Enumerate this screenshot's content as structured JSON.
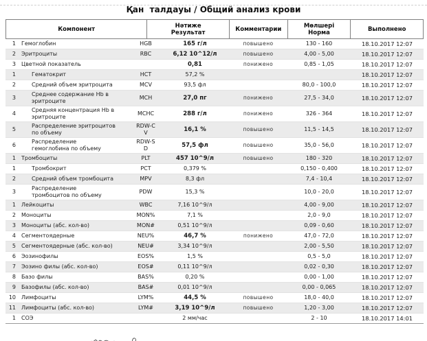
{
  "report": {
    "title": "Қан  талдауы / Общий анализ крови",
    "columns": {
      "component": "Компонент",
      "result_line1": "Нәтиже",
      "result_line2": "Результат",
      "comments": "Комментарии",
      "norm_line1": "Мөлшері",
      "norm_line2": "Норма",
      "done": "Выполнено"
    },
    "comment_values": {
      "high": "повышено",
      "low": "понижено"
    },
    "colors": {
      "stripe": "#ebebeb",
      "header_border": "#7f7f7f"
    },
    "rows": [
      {
        "num": "1",
        "name": "Гемоглобин",
        "abbr": "HGB",
        "result": "165 г/л",
        "comment": "повышено",
        "norm": "130 - 160",
        "done": "18.10.2017 12:07",
        "indent": false
      },
      {
        "num": "2",
        "name": "Эритроциты",
        "abbr": "RBC",
        "result": "6,12 10^12/л",
        "comment": "повышено",
        "norm": "4,00 - 5,00",
        "done": "18.10.2017 12:07",
        "indent": false
      },
      {
        "num": "3",
        "name": "Цветной показатель",
        "abbr": "",
        "result": "0,81",
        "comment": "понижено",
        "norm": "0,85 - 1,05",
        "done": "18.10.2017 12:07",
        "indent": false
      },
      {
        "num": "1",
        "name": "Гематокрит",
        "abbr": "HCT",
        "result": "57,2 %",
        "comment": "",
        "norm": "",
        "done": "18.10.2017 12:07",
        "indent": true
      },
      {
        "num": "2",
        "name": "Средний объем эритроцита",
        "abbr": "MCV",
        "result": "93,5 фл",
        "comment": "",
        "norm": "80,0 - 100,0",
        "done": "18.10.2017 12:07",
        "indent": true
      },
      {
        "num": "3",
        "name": "Среднее содержание Hb в эритроците",
        "abbr": "MCH",
        "result": "27,0 пг",
        "comment": "понижено",
        "norm": "27,5 - 34,0",
        "done": "18.10.2017 12:07",
        "indent": true
      },
      {
        "num": "4",
        "name": "Средняя концентрация Hb в эритроците",
        "abbr": "MCHC",
        "result": "288 г/л",
        "comment": "понижено",
        "norm": "326 - 364",
        "done": "18.10.2017 12:07",
        "indent": true
      },
      {
        "num": "5",
        "name": "Распределение эритроцитов по объему",
        "abbr": "RDW-C V",
        "result": "16,1 %",
        "comment": "повышено",
        "norm": "11,5 - 14,5",
        "done": "18.10.2017 12:07",
        "indent": true
      },
      {
        "num": "6",
        "name": "Распределение гемоглобина  по объему",
        "abbr": "RDW-S D",
        "result": "57,5 фл",
        "comment": "повышено",
        "norm": "35,0 - 56,0",
        "done": "18.10.2017 12:07",
        "indent": true
      },
      {
        "num": "1",
        "name": "Тромбоциты",
        "abbr": "PLT",
        "result": "457 10^9/л",
        "comment": "повышено",
        "norm": "180 - 320",
        "done": "18.10.2017 12:07",
        "indent": false
      },
      {
        "num": "1",
        "name": "Тромбокрит",
        "abbr": "PCT",
        "result": "0,379 %",
        "comment": "",
        "norm": "0,150 - 0,400",
        "done": "18.10.2017 12:07",
        "indent": true
      },
      {
        "num": "2",
        "name": "Средний объем тромбоцита",
        "abbr": "MPV",
        "result": "8,3 фл",
        "comment": "",
        "norm": "7,4 - 10,4",
        "done": "18.10.2017 12:07",
        "indent": true
      },
      {
        "num": "3",
        "name": "Распределение тромбоцитов по объему",
        "abbr": "PDW",
        "result": "15,3 %",
        "comment": "",
        "norm": "10,0 - 20,0",
        "done": "18.10.2017 12:07",
        "indent": true
      },
      {
        "num": "1",
        "name": "Лейкоциты",
        "abbr": "WBC",
        "result": "7,16 10^9/л",
        "comment": "",
        "norm": "4,00 - 9,00",
        "done": "18.10.2017 12:07",
        "indent": false
      },
      {
        "num": "2",
        "name": "Моноциты",
        "abbr": "MON%",
        "result": "7,1 %",
        "comment": "",
        "norm": "2,0 - 9,0",
        "done": "18.10.2017 12:07",
        "indent": false
      },
      {
        "num": "3",
        "name": "Моноциты (абс. кол-во)",
        "abbr": "MON#",
        "result": "0,51 10^9/л",
        "comment": "",
        "norm": "0,09 - 0,60",
        "done": "18.10.2017 12:07",
        "indent": false
      },
      {
        "num": "4",
        "name": "Сегментоядерные",
        "abbr": "NEU%",
        "result": "46,7 %",
        "comment": "понижено",
        "norm": "47,0 - 72,0",
        "done": "18.10.2017 12:07",
        "indent": false
      },
      {
        "num": "5",
        "name": "Сегментоядерные (абс. кол-во)",
        "abbr": "NEU#",
        "result": "3,34 10^9/л",
        "comment": "",
        "norm": "2,00 - 5,50",
        "done": "18.10.2017 12:07",
        "indent": false
      },
      {
        "num": "6",
        "name": "Эозинофилы",
        "abbr": "EOS%",
        "result": "1,5 %",
        "comment": "",
        "norm": "0,5 - 5,0",
        "done": "18.10.2017 12:07",
        "indent": false
      },
      {
        "num": "7",
        "name": "Эозино филы (абс. кол-во)",
        "abbr": "EOS#",
        "result": "0,11 10^9/л",
        "comment": "",
        "norm": "0,02 - 0,30",
        "done": "18.10.2017 12:07",
        "indent": false
      },
      {
        "num": "8",
        "name": "Базо филы",
        "abbr": "BAS%",
        "result": "0,20 %",
        "comment": "",
        "norm": "0,00 - 1,00",
        "done": "18.10.2017 12:07",
        "indent": false
      },
      {
        "num": "9",
        "name": "Базофилы (абс. кол-во)",
        "abbr": "BAS#",
        "result": "0,01 10^9/л",
        "comment": "",
        "norm": "0,00 - 0,065",
        "done": "18.10.2017 12:07",
        "indent": false
      },
      {
        "num": "10",
        "name": "Лимфоциты",
        "abbr": "LYM%",
        "result": "44,5 %",
        "comment": "повышено",
        "norm": "18,0 - 40,0",
        "done": "18.10.2017 12:07",
        "indent": false
      },
      {
        "num": "11",
        "name": "Лимфоциты (абс. кол-во)",
        "abbr": "LYM#",
        "result": "3,19 10^9/л",
        "comment": "повышено",
        "norm": "1,20 - 3,00",
        "done": "18.10.2017 12:07",
        "indent": false
      },
      {
        "num": "1",
        "name": "СОЭ",
        "abbr": "",
        "result": "2 мм/час",
        "comment": "",
        "norm": "2 - 10",
        "done": "18.10.2017 14:01",
        "indent": false
      }
    ]
  }
}
